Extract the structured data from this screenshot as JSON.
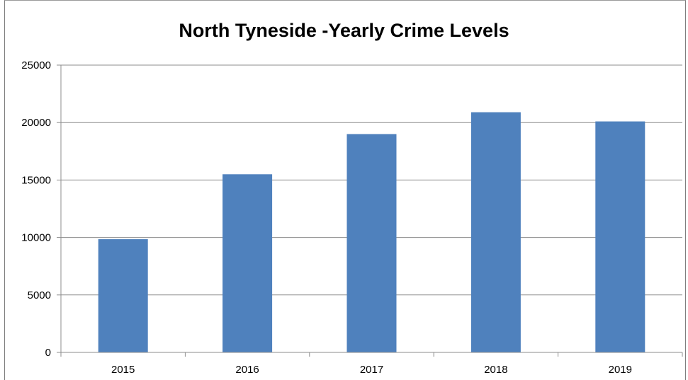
{
  "chart_data": {
    "type": "bar",
    "title": "North Tyneside -Yearly Crime Levels",
    "categories": [
      "2015",
      "2016",
      "2017",
      "2018",
      "2019"
    ],
    "values": [
      9850,
      15500,
      19000,
      20900,
      20100
    ],
    "ylim": [
      0,
      25000
    ],
    "yticks": [
      0,
      5000,
      10000,
      15000,
      20000,
      25000
    ],
    "xlabel": "",
    "ylabel": "",
    "grid": true,
    "legend": "none",
    "colors": {
      "bar": "#4f81bd",
      "grid": "#8c8c8c",
      "axis": "#8c8c8c"
    }
  }
}
